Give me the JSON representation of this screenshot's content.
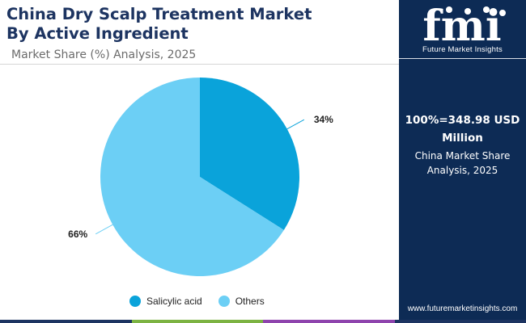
{
  "header": {
    "title_line1": "China Dry Scalp Treatment Market",
    "title_line2": "By Active Ingredient",
    "subtitle": "Market Share (%) Analysis, 2025"
  },
  "sidebar": {
    "logo_text": "fmi",
    "logo_caption": "Future Market Insights",
    "total_line1": "100%=348.98 USD",
    "total_line2": "Million",
    "note_line1": "China Market Share",
    "note_line2": "Analysis, 2025",
    "website": "www.futuremarketinsights.com",
    "background_color": "#0d2b55"
  },
  "footer_bar_colors": [
    "#1d3461",
    "#7cb342",
    "#8e44ad",
    "#1d3461"
  ],
  "chart_data": {
    "type": "pie",
    "categories": [
      "Salicylic acid",
      "Others"
    ],
    "values": [
      34,
      66
    ],
    "labels": [
      "34%",
      "66%"
    ],
    "colors": [
      "#0aa3da",
      "#6ccff5"
    ],
    "start_angle_deg": 0,
    "direction": "clockwise",
    "legend_position": "bottom"
  }
}
